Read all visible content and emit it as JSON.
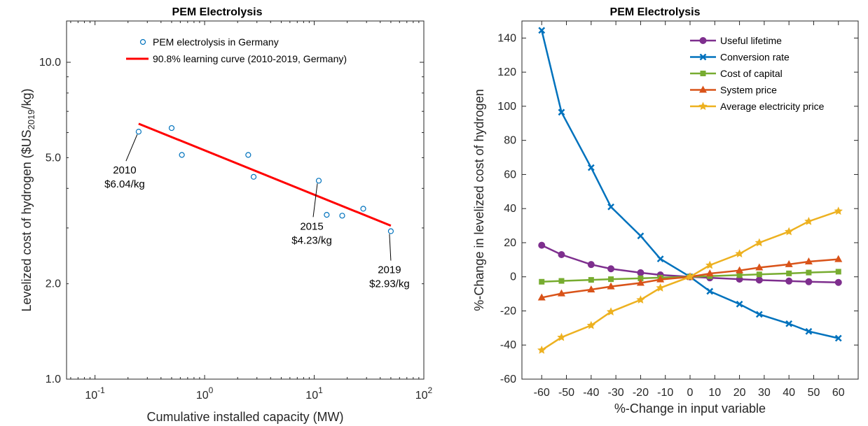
{
  "chart_data": [
    {
      "type": "scatter",
      "title": "PEM Electrolysis",
      "xlabel": "Cumulative installed capacity (MW)",
      "ylabel": {
        "prefix": "Levelized cost of hydrogen ($US",
        "sub": "2019",
        "suffix": "/kg)"
      },
      "xscale": "log",
      "yscale": "log",
      "xlim": [
        0.055,
        100
      ],
      "ylim": [
        1.0,
        13.5
      ],
      "xticks": [
        {
          "value": 0.1,
          "label": "10",
          "exp": "-1"
        },
        {
          "value": 1,
          "label": "10",
          "exp": "0"
        },
        {
          "value": 10,
          "label": "10",
          "exp": "1"
        },
        {
          "value": 100,
          "label": "10",
          "exp": "2"
        }
      ],
      "yticks": [
        {
          "value": 1.0,
          "label": "1.0"
        },
        {
          "value": 2.0,
          "label": "2.0"
        },
        {
          "value": 5.0,
          "label": "5.0"
        },
        {
          "value": 10.0,
          "label": "10.0"
        }
      ],
      "legend_position": "top",
      "series": [
        {
          "name": "PEM electrolysis in Germany",
          "kind": "markers",
          "color": "#0072bd",
          "x": [
            0.25,
            0.5,
            0.62,
            2.5,
            2.8,
            11,
            13,
            18,
            28,
            50
          ],
          "y": [
            6.04,
            6.2,
            5.1,
            5.1,
            4.35,
            4.23,
            3.3,
            3.28,
            3.45,
            2.93
          ]
        },
        {
          "name": "90.8% learning curve (2010-2019, Germany)",
          "kind": "line",
          "color": "#ff0000",
          "x": [
            0.25,
            50
          ],
          "y": [
            6.4,
            3.05
          ]
        }
      ],
      "annotations": [
        {
          "line1": "2010",
          "line2": "$6.04/kg"
        },
        {
          "line1": "2015",
          "line2": "$4.23/kg"
        },
        {
          "line1": "2019",
          "line2": "$2.93/kg"
        }
      ]
    },
    {
      "type": "line",
      "title": "PEM Electrolysis",
      "xlabel": "%-Change in input variable",
      "ylabel": "%-Change in levelized cost of hydrogen",
      "xlim": [
        -68,
        68
      ],
      "ylim": [
        -60,
        150
      ],
      "xticks": [
        -60,
        -50,
        -40,
        -30,
        -20,
        -10,
        0,
        10,
        20,
        30,
        40,
        50,
        60
      ],
      "yticks": [
        -60,
        -40,
        -20,
        0,
        20,
        40,
        60,
        80,
        100,
        120,
        140
      ],
      "legend_position": "top-right",
      "series": [
        {
          "name": "Useful lifetime",
          "color": "#7e2f8e",
          "marker": "circle",
          "x": [
            -60,
            -52,
            -40,
            -32,
            -20,
            -12,
            0,
            8,
            20,
            28,
            40,
            48,
            60
          ],
          "y": [
            18.5,
            13,
            7.2,
            4.7,
            2.4,
            1.1,
            0,
            -0.6,
            -1.4,
            -1.9,
            -2.5,
            -2.9,
            -3.3
          ]
        },
        {
          "name": "Conversion rate",
          "color": "#0072bd",
          "marker": "x",
          "x": [
            -60,
            -52,
            -40,
            -32,
            -20,
            -12,
            0,
            8,
            20,
            28,
            40,
            48,
            60
          ],
          "y": [
            144.5,
            96.5,
            64,
            41,
            24,
            10.5,
            0,
            -8.5,
            -16,
            -22,
            -27.5,
            -32,
            -36
          ]
        },
        {
          "name": "Cost of capital",
          "color": "#77ac30",
          "marker": "square",
          "x": [
            -60,
            -52,
            -40,
            -32,
            -20,
            -12,
            0,
            8,
            20,
            28,
            40,
            48,
            60
          ],
          "y": [
            -2.9,
            -2.4,
            -1.8,
            -1.4,
            -0.9,
            -0.5,
            0,
            0.4,
            1,
            1.4,
            2,
            2.5,
            3
          ]
        },
        {
          "name": "System price",
          "color": "#d95319",
          "marker": "triangle",
          "x": [
            -60,
            -52,
            -40,
            -32,
            -20,
            -12,
            0,
            8,
            20,
            28,
            40,
            48,
            60
          ],
          "y": [
            -12.2,
            -9.8,
            -7.5,
            -5.7,
            -3.6,
            -1.6,
            0,
            1.9,
            3.7,
            5.4,
            7.3,
            8.9,
            10.3
          ]
        },
        {
          "name": "Average electricity price",
          "color": "#edb120",
          "marker": "star",
          "x": [
            -60,
            -52,
            -40,
            -32,
            -20,
            -12,
            0,
            8,
            20,
            28,
            40,
            48,
            60
          ],
          "y": [
            -43,
            -35.5,
            -28.5,
            -20.5,
            -13.5,
            -6.5,
            0,
            6.8,
            13.5,
            20,
            26.5,
            32.5,
            38.5
          ]
        }
      ]
    }
  ]
}
